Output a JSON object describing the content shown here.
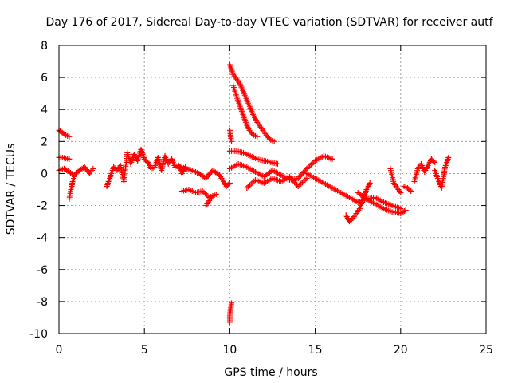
{
  "chart_data": {
    "type": "scatter",
    "title": "Day 176 of 2017, Sidereal Day-to-day VTEC variation (SDTVAR) for receiver autf",
    "xlabel": "GPS time / hours",
    "ylabel": "SDTVAR / TECUs",
    "xlim": [
      0,
      25
    ],
    "ylim": [
      -10,
      8
    ],
    "xticks": [
      0,
      5,
      10,
      15,
      20,
      25
    ],
    "yticks": [
      -10,
      -8,
      -6,
      -4,
      -2,
      0,
      2,
      4,
      6,
      8
    ],
    "grid": true,
    "marker": "plus",
    "color": "#ff0000",
    "series": [
      {
        "name": "SDTVAR",
        "segments": [
          {
            "x": [
              0.0,
              0.2,
              0.4,
              0.6
            ],
            "y": [
              2.7,
              2.55,
              2.4,
              2.3
            ]
          },
          {
            "x": [
              0.0,
              0.2,
              0.4,
              0.6
            ],
            "y": [
              1.0,
              1.0,
              0.95,
              0.9
            ]
          },
          {
            "x": [
              0.0,
              0.3,
              0.6,
              0.9,
              1.2,
              1.5,
              1.8,
              2.0
            ],
            "y": [
              0.2,
              0.3,
              0.1,
              -0.1,
              0.2,
              0.4,
              0.0,
              0.3
            ]
          },
          {
            "x": [
              0.6,
              0.7,
              0.8,
              0.9
            ],
            "y": [
              -1.6,
              -1.0,
              -0.5,
              -0.2
            ]
          },
          {
            "x": [
              2.8,
              3.0,
              3.2,
              3.4,
              3.6,
              3.8,
              4.0,
              4.2,
              4.4,
              4.6,
              4.8,
              5.0,
              5.2,
              5.4,
              5.6,
              5.8,
              6.0,
              6.2,
              6.4,
              6.6,
              6.8,
              7.0,
              7.2,
              7.4
            ],
            "y": [
              -0.8,
              -0.2,
              0.4,
              0.2,
              0.5,
              -0.5,
              1.3,
              0.6,
              1.2,
              0.8,
              1.5,
              0.9,
              0.7,
              0.3,
              0.4,
              1.0,
              0.2,
              1.1,
              0.6,
              0.9,
              0.4,
              0.5,
              0.0,
              0.4
            ]
          },
          {
            "x": [
              7.0,
              7.4,
              7.8,
              8.2,
              8.6,
              9.0,
              9.4,
              9.8,
              10.0
            ],
            "y": [
              0.5,
              0.3,
              0.2,
              0.0,
              -0.3,
              0.2,
              -0.1,
              -0.8,
              -0.6
            ]
          },
          {
            "x": [
              7.2,
              7.6,
              8.0,
              8.4,
              8.8,
              9.2
            ],
            "y": [
              -1.1,
              -1.0,
              -1.2,
              -1.1,
              -1.5,
              -1.3
            ]
          },
          {
            "x": [
              8.6,
              8.8,
              9.0
            ],
            "y": [
              -2.0,
              -1.7,
              -1.4
            ]
          },
          {
            "x": [
              10.0,
              10.0,
              10.05,
              10.1
            ],
            "y": [
              -9.3,
              -8.8,
              -8.5,
              -8.1
            ]
          },
          {
            "x": [
              10.0,
              10.05,
              10.1
            ],
            "y": [
              2.7,
              2.3,
              2.0
            ]
          },
          {
            "x": [
              10.0,
              10.2,
              10.4,
              10.6,
              10.8,
              11.0,
              11.2,
              11.4,
              11.6,
              11.8,
              12.0,
              12.2,
              12.4,
              12.6
            ],
            "y": [
              6.8,
              6.2,
              5.9,
              5.6,
              5.1,
              4.6,
              4.1,
              3.6,
              3.2,
              2.9,
              2.6,
              2.3,
              2.1,
              2.0
            ]
          },
          {
            "x": [
              10.2,
              10.4,
              10.6,
              10.8,
              11.0,
              11.2,
              11.4,
              11.6
            ],
            "y": [
              5.5,
              4.8,
              4.2,
              3.6,
              3.0,
              2.6,
              2.4,
              2.3
            ]
          },
          {
            "x": [
              10.0,
              10.4,
              10.8,
              11.2,
              11.6,
              12.0,
              12.4,
              12.8
            ],
            "y": [
              1.4,
              1.4,
              1.3,
              1.1,
              0.9,
              0.8,
              0.7,
              0.6
            ]
          },
          {
            "x": [
              10.0,
              10.5,
              11.0,
              11.5,
              12.0,
              12.5,
              13.0,
              13.5,
              14.0,
              14.5,
              15.0,
              15.5,
              16.0
            ],
            "y": [
              0.3,
              0.6,
              0.4,
              0.1,
              -0.2,
              0.2,
              -0.1,
              -0.4,
              -0.3,
              0.3,
              0.8,
              1.1,
              0.9
            ]
          },
          {
            "x": [
              11.0,
              11.5,
              12.0,
              12.5,
              13.0,
              13.5,
              14.0,
              14.5
            ],
            "y": [
              -0.9,
              -0.4,
              -0.6,
              -0.3,
              -0.5,
              -0.2,
              -0.8,
              -0.3
            ]
          },
          {
            "x": [
              14.5,
              15.0,
              15.5,
              16.0,
              16.5,
              17.0,
              17.5,
              18.0,
              18.5,
              19.0,
              19.5,
              20.0,
              20.3
            ],
            "y": [
              0.0,
              -0.3,
              -0.6,
              -0.9,
              -1.2,
              -1.5,
              -1.8,
              -1.6,
              -1.9,
              -2.2,
              -2.4,
              -2.5,
              -2.3
            ]
          },
          {
            "x": [
              16.8,
              17.0,
              17.2,
              17.4,
              17.6,
              17.8,
              18.0,
              18.2
            ],
            "y": [
              -2.6,
              -3.0,
              -2.8,
              -2.5,
              -2.2,
              -1.6,
              -1.0,
              -0.6
            ]
          },
          {
            "x": [
              17.5,
              18.0,
              18.5,
              19.0,
              19.5,
              20.0
            ],
            "y": [
              -1.2,
              -1.6,
              -1.5,
              -1.8,
              -2.0,
              -2.2
            ]
          },
          {
            "x": [
              19.4,
              19.6,
              19.8,
              20.0
            ],
            "y": [
              0.3,
              -0.6,
              -0.9,
              -1.2
            ]
          },
          {
            "x": [
              20.2,
              20.4,
              20.6
            ],
            "y": [
              -0.8,
              -0.9,
              -1.1
            ]
          },
          {
            "x": [
              20.8,
              21.0,
              21.2,
              21.4,
              21.6,
              21.8,
              22.0
            ],
            "y": [
              -0.5,
              0.3,
              0.6,
              0.1,
              0.5,
              0.9,
              0.7
            ]
          },
          {
            "x": [
              22.0,
              22.2,
              22.4,
              22.6,
              22.8
            ],
            "y": [
              0.2,
              -0.4,
              -0.9,
              0.4,
              1.0
            ]
          }
        ]
      }
    ]
  }
}
